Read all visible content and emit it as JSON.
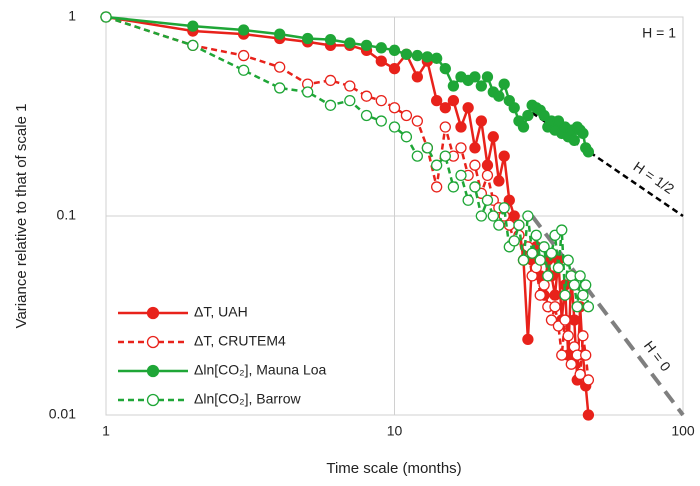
{
  "chart_data": {
    "type": "line",
    "x_label": "Time scale (months)",
    "y_label": "Variance relative to that of scale 1",
    "x": [
      1,
      2,
      3,
      4,
      5,
      6,
      7,
      8,
      9,
      10,
      11,
      12,
      13,
      14,
      15,
      16,
      17,
      18,
      19,
      20,
      21,
      22,
      23,
      24,
      25,
      26,
      27,
      28,
      29,
      30,
      31,
      32,
      33,
      34,
      35,
      36,
      37,
      38,
      39,
      40,
      41,
      42,
      43,
      44,
      45,
      46,
      47
    ],
    "xlim": [
      1,
      100
    ],
    "ylim": [
      0.01,
      1
    ],
    "xticks": [
      1,
      10,
      100
    ],
    "yticks": [
      0.01,
      0.1,
      1
    ],
    "log_x": true,
    "log_y": true,
    "grid": true,
    "legend": "lower left",
    "series": [
      {
        "name": "ΔT, UAH",
        "color": "#e8221b",
        "line_style": "solid",
        "marker": "filled",
        "values": [
          1,
          0.85,
          0.82,
          0.78,
          0.75,
          0.72,
          0.72,
          0.68,
          0.6,
          0.55,
          0.65,
          0.5,
          0.6,
          0.38,
          0.35,
          0.38,
          0.28,
          0.35,
          0.22,
          0.3,
          0.18,
          0.25,
          0.15,
          0.2,
          0.12,
          0.1,
          0.09,
          0.06,
          0.024,
          0.06,
          0.07,
          0.05,
          0.04,
          0.06,
          0.05,
          0.04,
          0.06,
          0.03,
          0.045,
          0.02,
          0.05,
          0.03,
          0.015,
          0.035,
          0.02,
          0.014,
          0.01
        ]
      },
      {
        "name": "ΔT, CRUTEM4",
        "color": "#e8221b",
        "line_style": "dashed",
        "marker": "open",
        "values": [
          1,
          0.72,
          0.64,
          0.56,
          0.46,
          0.48,
          0.45,
          0.4,
          0.38,
          0.35,
          0.32,
          0.3,
          0.22,
          0.14,
          0.28,
          0.2,
          0.22,
          0.16,
          0.18,
          0.13,
          0.16,
          0.12,
          0.11,
          0.1,
          0.09,
          0.075,
          0.08,
          0.06,
          0.07,
          0.05,
          0.055,
          0.04,
          0.045,
          0.035,
          0.03,
          0.035,
          0.028,
          0.02,
          0.03,
          0.025,
          0.018,
          0.022,
          0.02,
          0.016,
          0.025,
          0.02,
          0.015
        ]
      },
      {
        "name": "Δln[CO₂], Mauna Loa",
        "color": "#1fa637",
        "line_style": "solid",
        "marker": "filled",
        "values": [
          1,
          0.9,
          0.86,
          0.82,
          0.78,
          0.77,
          0.74,
          0.72,
          0.7,
          0.68,
          0.65,
          0.64,
          0.63,
          0.62,
          0.55,
          0.45,
          0.5,
          0.48,
          0.5,
          0.45,
          0.5,
          0.42,
          0.4,
          0.46,
          0.38,
          0.35,
          0.3,
          0.28,
          0.32,
          0.36,
          0.35,
          0.34,
          0.32,
          0.28,
          0.3,
          0.27,
          0.3,
          0.26,
          0.28,
          0.25,
          0.27,
          0.24,
          0.28,
          0.27,
          0.26,
          0.22,
          0.21
        ]
      },
      {
        "name": "Δln[CO₂], Barrow",
        "color": "#1fa637",
        "line_style": "dashed",
        "marker": "open",
        "values": [
          1,
          0.72,
          0.54,
          0.44,
          0.42,
          0.36,
          0.38,
          0.32,
          0.3,
          0.28,
          0.25,
          0.2,
          0.22,
          0.18,
          0.2,
          0.14,
          0.16,
          0.12,
          0.14,
          0.1,
          0.12,
          0.1,
          0.09,
          0.11,
          0.07,
          0.075,
          0.09,
          0.06,
          0.1,
          0.065,
          0.08,
          0.06,
          0.07,
          0.05,
          0.065,
          0.08,
          0.055,
          0.085,
          0.04,
          0.06,
          0.05,
          0.045,
          0.035,
          0.05,
          0.04,
          0.045,
          0.035
        ]
      }
    ],
    "reference_lines": [
      {
        "label": "H = 1/2",
        "x": [
          30,
          100
        ],
        "y": [
          0.33,
          0.1
        ],
        "color": "#000000",
        "width": 2.5
      },
      {
        "label": "H = 0",
        "x": [
          30,
          100
        ],
        "y": [
          0.1,
          0.01
        ],
        "color": "#7f7f7f",
        "width": 4
      }
    ],
    "annotation": "H = 1"
  }
}
